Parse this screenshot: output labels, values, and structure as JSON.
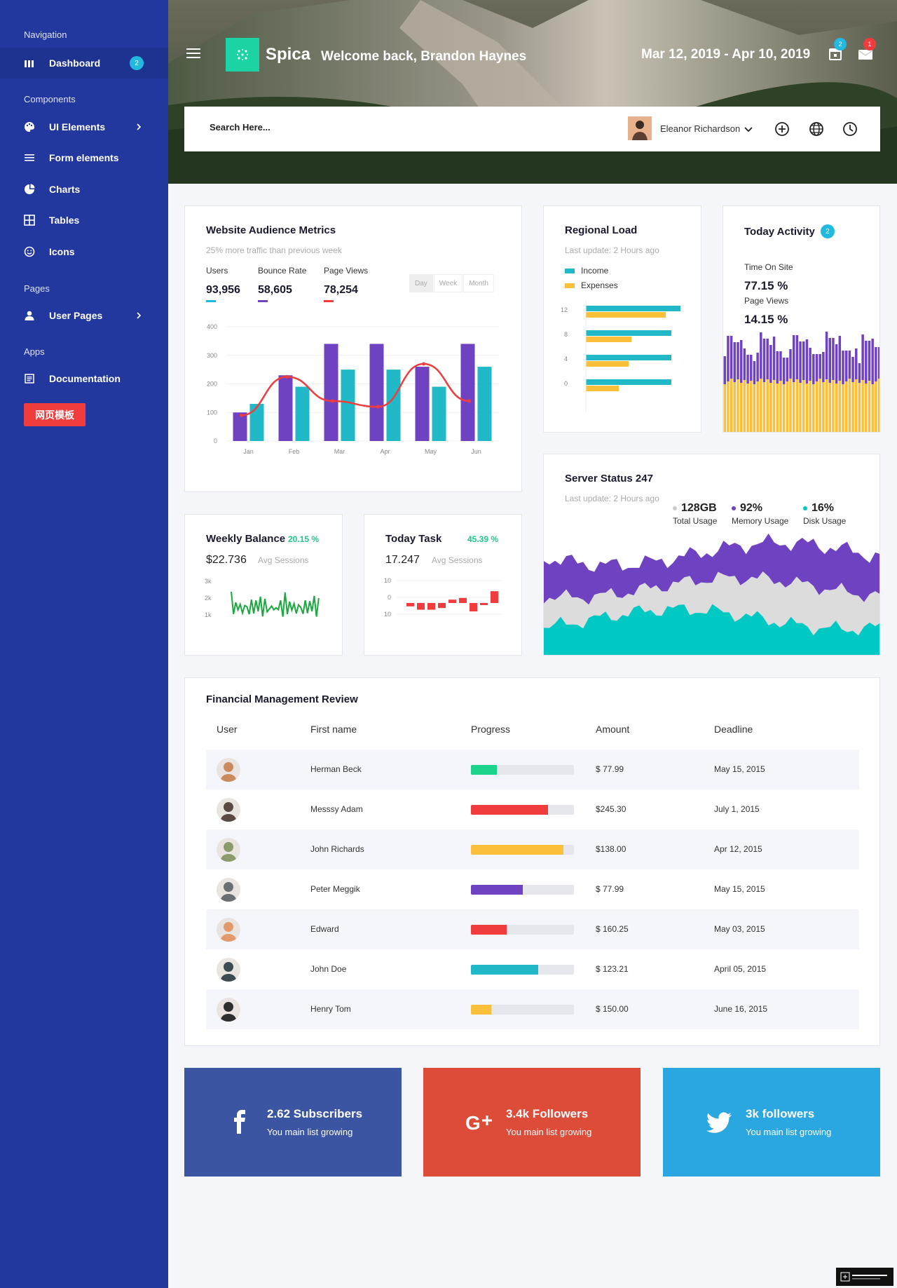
{
  "sidebar": {
    "sections": [
      "Navigation",
      "Components",
      "Pages",
      "Apps"
    ],
    "items": [
      {
        "label": "Dashboard",
        "icon": "dashboard-icon",
        "badge": "2"
      },
      {
        "label": "UI Elements",
        "icon": "palette-icon"
      },
      {
        "label": "Form elements",
        "icon": "list-icon"
      },
      {
        "label": "Charts",
        "icon": "pie-chart-icon"
      },
      {
        "label": "Tables",
        "icon": "grid-icon"
      },
      {
        "label": "Icons",
        "icon": "smiley-icon"
      },
      {
        "label": "User Pages",
        "icon": "user-icon"
      },
      {
        "label": "Documentation",
        "icon": "document-icon"
      }
    ],
    "promo_label": "网页模板"
  },
  "header": {
    "brand": "Spica",
    "welcome": "Welcome back, Brandon Haynes",
    "date_range": "Mar 12, 2019 - Apr 10, 2019",
    "calendar_badge": "2",
    "mail_badge": "1"
  },
  "search": {
    "placeholder": "Search Here..."
  },
  "profile": {
    "name": "Eleanor Richardson"
  },
  "audience": {
    "title": "Website Audience Metrics",
    "subtitle": "25% more traffic than previous week",
    "metrics": [
      {
        "label": "Users",
        "value": "93,956",
        "color": "#21b9e0"
      },
      {
        "label": "Bounce Rate",
        "value": "58,605",
        "color": "#6f42c1"
      },
      {
        "label": "Page Views",
        "value": "78,254",
        "color": "#f03c3c"
      }
    ],
    "tabs": [
      "Day",
      "Week",
      "Month"
    ]
  },
  "regional": {
    "title": "Regional Load",
    "subtitle": "Last update: 2 Hours ago",
    "legend": [
      {
        "label": "Income",
        "color": "#21b9c8"
      },
      {
        "label": "Expenses",
        "color": "#fbbf3a"
      }
    ]
  },
  "activity": {
    "title": "Today Activity",
    "badge": "2",
    "time_label": "Time On Site",
    "time_value": "77.15 %",
    "views_label": "Page Views",
    "views_value": "14.15 %"
  },
  "server": {
    "title": "Server Status 247",
    "subtitle": "Last update: 2 Hours ago",
    "stats": [
      {
        "value": "128GB",
        "label": "Total Usage",
        "color": "#ccc"
      },
      {
        "value": "92%",
        "label": "Memory Usage",
        "color": "#6f42c1"
      },
      {
        "value": "16%",
        "label": "Disk Usage",
        "color": "#00c9c3"
      }
    ]
  },
  "weekly": {
    "title": "Weekly Balance",
    "delta": "20.15 %",
    "value": "$22.736",
    "unit": "Avg Sessions"
  },
  "task": {
    "title": "Today Task",
    "delta": "45.39 %",
    "value": "17.247",
    "unit": "Avg Sessions"
  },
  "finance": {
    "title": "Financial Management Review",
    "columns": [
      "User",
      "First name",
      "Progress",
      "Amount",
      "Deadline"
    ],
    "rows": [
      {
        "name": "Herman Beck",
        "progress": 0.25,
        "color": "#1cd38a",
        "amount": "$ 77.99",
        "deadline": "May 15, 2015",
        "ava": "#c98a5e"
      },
      {
        "name": "Messsy Adam",
        "progress": 0.75,
        "color": "#f03c3c",
        "amount": "$245.30",
        "deadline": "July 1, 2015",
        "ava": "#5b4a44"
      },
      {
        "name": "John Richards",
        "progress": 0.9,
        "color": "#fbbf3a",
        "amount": "$138.00",
        "deadline": "Apr 12, 2015",
        "ava": "#8d9a6a"
      },
      {
        "name": "Peter Meggik",
        "progress": 0.5,
        "color": "#6f42c1",
        "amount": "$ 77.99",
        "deadline": "May 15, 2015",
        "ava": "#6b6f74"
      },
      {
        "name": "Edward",
        "progress": 0.35,
        "color": "#f03c3c",
        "amount": "$ 160.25",
        "deadline": "May 03, 2015",
        "ava": "#e29a6c"
      },
      {
        "name": "John Doe",
        "progress": 0.65,
        "color": "#21b9c8",
        "amount": "$ 123.21",
        "deadline": "April 05, 2015",
        "ava": "#3d4a52"
      },
      {
        "name": "Henry Tom",
        "progress": 0.2,
        "color": "#fbbf3a",
        "amount": "$ 150.00",
        "deadline": "June 16, 2015",
        "ava": "#2f2f2f"
      }
    ]
  },
  "social": [
    {
      "title": "2.62 Subscribers",
      "sub": "You main list growing",
      "color": "#3b55a2",
      "icon": "facebook-icon"
    },
    {
      "title": "3.4k Followers",
      "sub": "You main list growing",
      "color": "#dd4b39",
      "icon": "google-plus-icon"
    },
    {
      "title": "3k followers",
      "sub": "You main list growing",
      "color": "#2aa6e0",
      "icon": "twitter-icon"
    }
  ],
  "chart_data": [
    {
      "type": "bar",
      "categories": [
        "Jan",
        "Feb",
        "Mar",
        "Apr",
        "May",
        "Jun"
      ],
      "ylim": [
        0,
        400
      ],
      "yticks": [
        0,
        100,
        200,
        300,
        400
      ],
      "series": [
        {
          "values": [
            100,
            230,
            340,
            340,
            260,
            340
          ],
          "color": "#6f42c1"
        },
        {
          "values": [
            130,
            190,
            250,
            250,
            190,
            260
          ],
          "color": "#21b9c8"
        },
        {
          "values": [
            90,
            225,
            140,
            120,
            270,
            140
          ],
          "color": "#f03c3c",
          "kind": "line"
        }
      ]
    },
    {
      "type": "bar",
      "orientation": "horizontal",
      "yticks": [
        0,
        4,
        8,
        12
      ],
      "series": [
        {
          "name": "Income",
          "values": [
            13.5,
            12.2,
            12.2,
            12.2
          ],
          "color": "#21b9c8"
        },
        {
          "name": "Expenses",
          "values": [
            11.4,
            6.5,
            6.1,
            4.7
          ],
          "color": "#fbbf3a"
        }
      ]
    },
    {
      "type": "line",
      "yticks": [
        "3k",
        "2k",
        "1k"
      ],
      "series": [
        {
          "color": "#1aa83f"
        }
      ]
    },
    {
      "type": "bar",
      "yticks": [
        10,
        0,
        -10
      ],
      "series": [
        {
          "values": [
            -2,
            -4,
            -4,
            -3,
            2,
            3,
            -5,
            -1,
            7
          ],
          "color": "#f03c3c"
        }
      ]
    }
  ]
}
